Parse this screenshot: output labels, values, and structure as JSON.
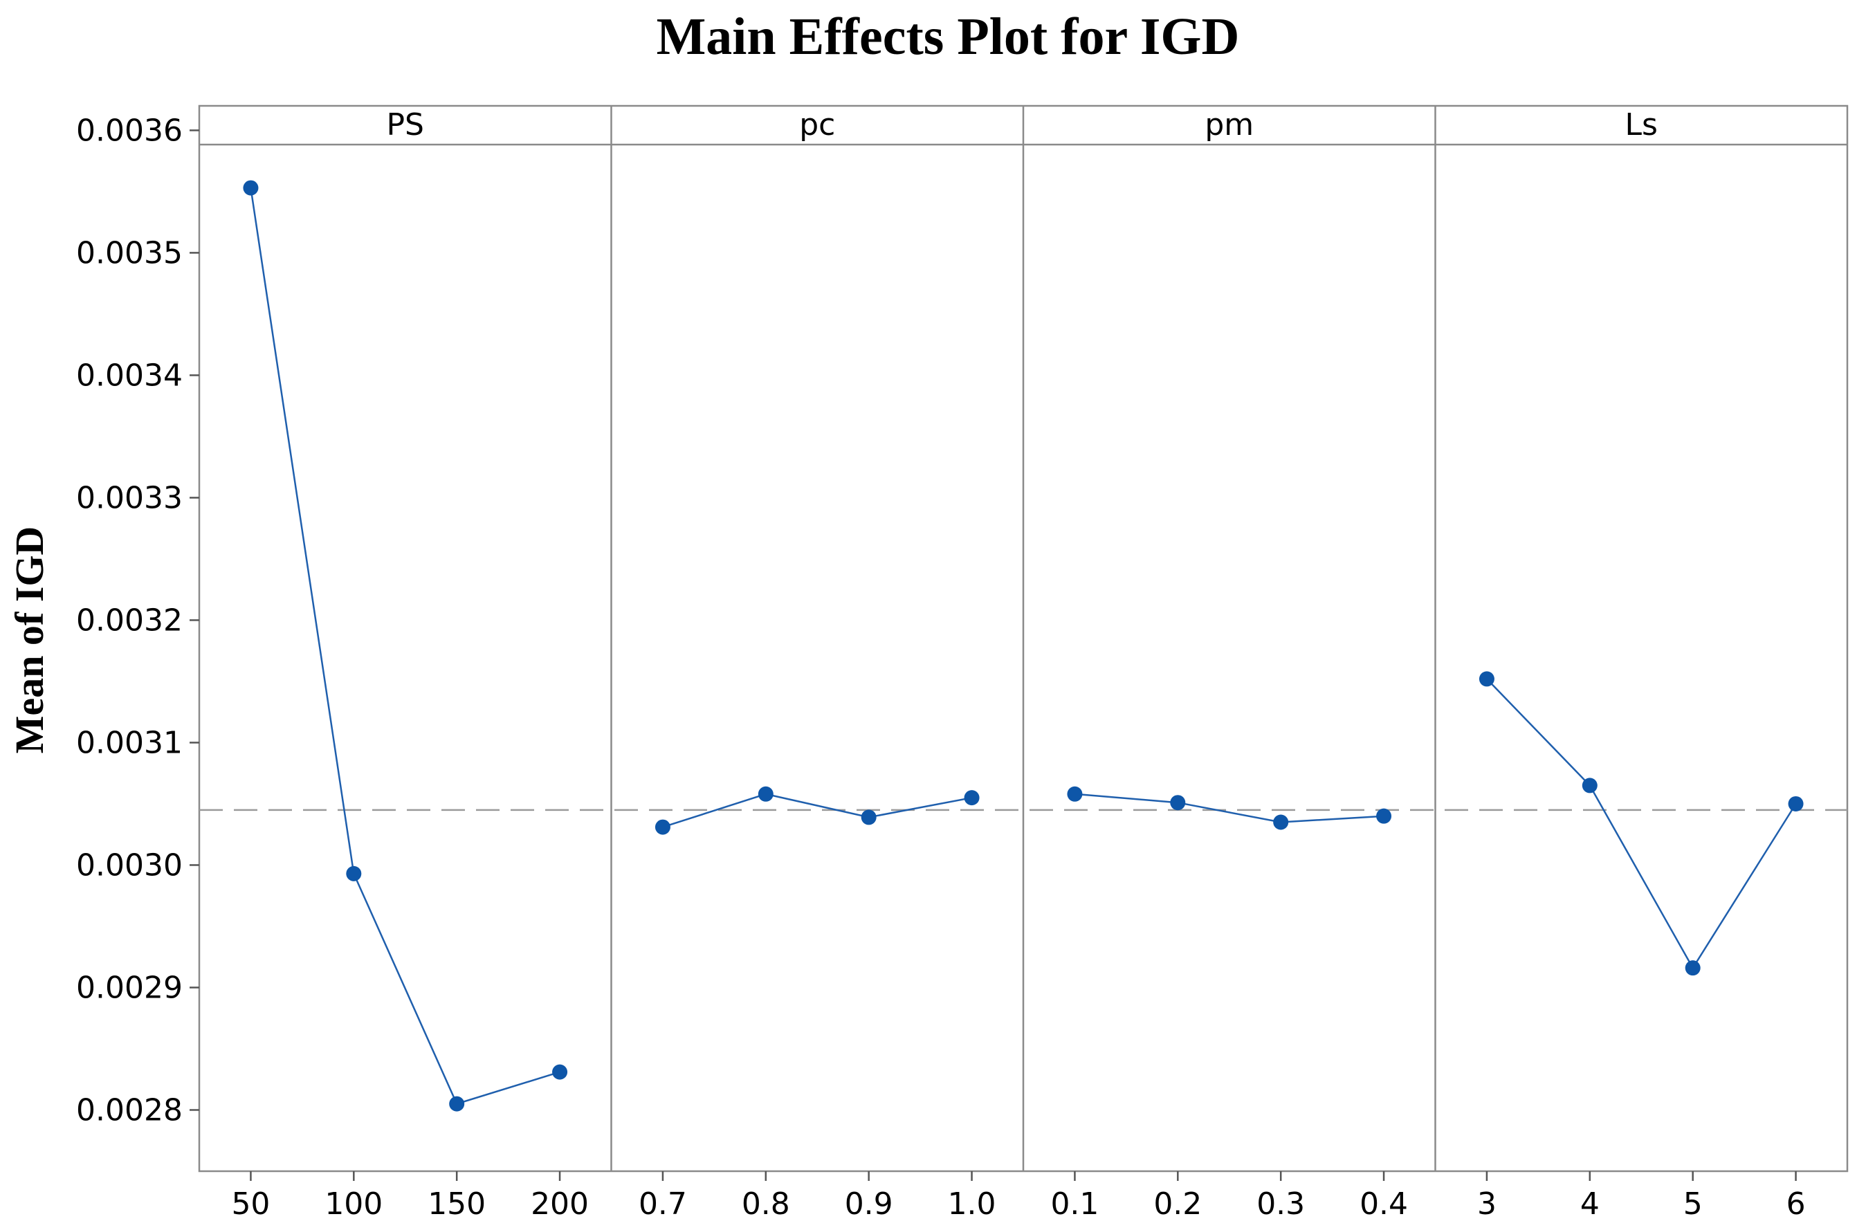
{
  "chart_data": {
    "type": "line",
    "title": "Main Effects Plot for IGD",
    "xlabel": "",
    "ylabel": "Mean of IGD",
    "ylim": [
      0.00275,
      0.00362
    ],
    "yticks": [
      "0.0028",
      "0.0029",
      "0.0030",
      "0.0031",
      "0.0032",
      "0.0033",
      "0.0034",
      "0.0035",
      "0.0036"
    ],
    "grand_mean": 0.003045,
    "line_color": "#1f5fad",
    "marker_color": "#0e56a8",
    "reference_line_color": "#9a9a9a",
    "panels": [
      {
        "name": "PS",
        "categories": [
          "50",
          "100",
          "150",
          "200"
        ],
        "values": [
          0.003553,
          0.002993,
          0.002805,
          0.002831
        ]
      },
      {
        "name": "pc",
        "categories": [
          "0.7",
          "0.8",
          "0.9",
          "1.0"
        ],
        "values": [
          0.003031,
          0.003058,
          0.003039,
          0.003055
        ]
      },
      {
        "name": "pm",
        "categories": [
          "0.1",
          "0.2",
          "0.3",
          "0.4"
        ],
        "values": [
          0.003058,
          0.003051,
          0.003035,
          0.00304
        ]
      },
      {
        "name": "Ls",
        "categories": [
          "3",
          "4",
          "5",
          "6"
        ],
        "values": [
          0.003152,
          0.003065,
          0.002916,
          0.00305
        ]
      }
    ]
  }
}
